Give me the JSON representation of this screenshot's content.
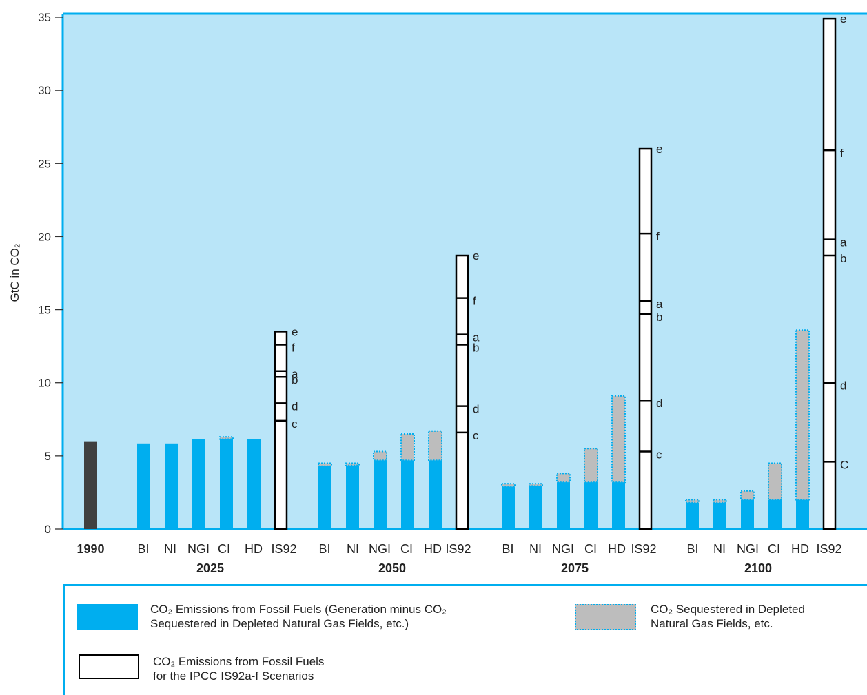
{
  "chart_data": {
    "type": "bar",
    "ylabel": "GtC in CO₂",
    "ylim": [
      0,
      35
    ],
    "yticks": [
      0,
      5,
      10,
      15,
      20,
      25,
      30,
      35
    ],
    "grid": false,
    "background": "#b9e5f8",
    "colors": {
      "emissions": "#00aeef",
      "sequestered": "#bdbdbd",
      "sequestered_border": "#00aeef",
      "baseline_1990": "#404040",
      "is92_fill": "#ffffff",
      "is92_border": "#000000",
      "axis": "#00aeef"
    },
    "base_year": {
      "label": "1990",
      "value": 6.0
    },
    "groups": [
      {
        "year": "2025",
        "bars": [
          {
            "label": "BI",
            "emissions": 5.85,
            "sequestered": 0
          },
          {
            "label": "NI",
            "emissions": 5.85,
            "sequestered": 0
          },
          {
            "label": "NGI",
            "emissions": 6.15,
            "sequestered": 0
          },
          {
            "label": "CI",
            "emissions": 6.15,
            "sequestered": 0.15
          },
          {
            "label": "HD",
            "emissions": 6.15,
            "sequestered": 0
          }
        ],
        "is92": {
          "label": "IS92",
          "top": 13.5,
          "scenarios": [
            {
              "letter": "e",
              "value": 13.5
            },
            {
              "letter": "f",
              "value": 12.6
            },
            {
              "letter": "a",
              "value": 10.8
            },
            {
              "letter": "b",
              "value": 10.4
            },
            {
              "letter": "d",
              "value": 8.6
            },
            {
              "letter": "c",
              "value": 7.4
            }
          ]
        }
      },
      {
        "year": "2050",
        "bars": [
          {
            "label": "BI",
            "emissions": 4.3,
            "sequestered": 0.2
          },
          {
            "label": "NI",
            "emissions": 4.35,
            "sequestered": 0.15
          },
          {
            "label": "NGI",
            "emissions": 4.7,
            "sequestered": 0.6
          },
          {
            "label": "CI",
            "emissions": 4.7,
            "sequestered": 1.8
          },
          {
            "label": "HD",
            "emissions": 4.7,
            "sequestered": 2.0
          }
        ],
        "is92": {
          "label": "IS92",
          "top": 18.7,
          "scenarios": [
            {
              "letter": "e",
              "value": 18.7
            },
            {
              "letter": "f",
              "value": 15.8
            },
            {
              "letter": "a",
              "value": 13.3
            },
            {
              "letter": "b",
              "value": 12.6
            },
            {
              "letter": "d",
              "value": 8.4
            },
            {
              "letter": "c",
              "value": 6.6
            }
          ]
        }
      },
      {
        "year": "2075",
        "bars": [
          {
            "label": "BI",
            "emissions": 2.9,
            "sequestered": 0.2
          },
          {
            "label": "NI",
            "emissions": 2.95,
            "sequestered": 0.15
          },
          {
            "label": "NGI",
            "emissions": 3.2,
            "sequestered": 0.6
          },
          {
            "label": "CI",
            "emissions": 3.2,
            "sequestered": 2.3
          },
          {
            "label": "HD",
            "emissions": 3.2,
            "sequestered": 5.9
          }
        ],
        "is92": {
          "label": "IS92",
          "top": 26.0,
          "scenarios": [
            {
              "letter": "e",
              "value": 26.0
            },
            {
              "letter": "f",
              "value": 20.2
            },
            {
              "letter": "a",
              "value": 15.6
            },
            {
              "letter": "b",
              "value": 14.7
            },
            {
              "letter": "d",
              "value": 8.8
            },
            {
              "letter": "c",
              "value": 5.3
            }
          ]
        }
      },
      {
        "year": "2100",
        "bars": [
          {
            "label": "BI",
            "emissions": 1.8,
            "sequestered": 0.2
          },
          {
            "label": "NI",
            "emissions": 1.8,
            "sequestered": 0.2
          },
          {
            "label": "NGI",
            "emissions": 2.0,
            "sequestered": 0.6
          },
          {
            "label": "CI",
            "emissions": 2.0,
            "sequestered": 2.5
          },
          {
            "label": "HD",
            "emissions": 2.0,
            "sequestered": 11.6
          }
        ],
        "is92": {
          "label": "IS92",
          "top": 34.9,
          "scenarios": [
            {
              "letter": "e",
              "value": 34.9
            },
            {
              "letter": "f",
              "value": 25.9
            },
            {
              "letter": "a",
              "value": 19.8
            },
            {
              "letter": "b",
              "value": 18.7
            },
            {
              "letter": "d",
              "value": 10.0
            },
            {
              "letter": "C",
              "value": 4.6
            }
          ]
        }
      }
    ]
  },
  "legend": {
    "emissions": {
      "line1": "CO₂ Emissions from Fossil Fuels (Generation minus CO₂",
      "line2": "Sequestered in Depleted Natural Gas Fields, etc.)"
    },
    "sequestered": {
      "line1": "CO₂ Sequestered in Depleted",
      "line2": "Natural Gas Fields, etc."
    },
    "is92": {
      "line1": "CO₂ Emissions from Fossil Fuels",
      "line2": "for the IPCC IS92a-f Scenarios"
    }
  }
}
